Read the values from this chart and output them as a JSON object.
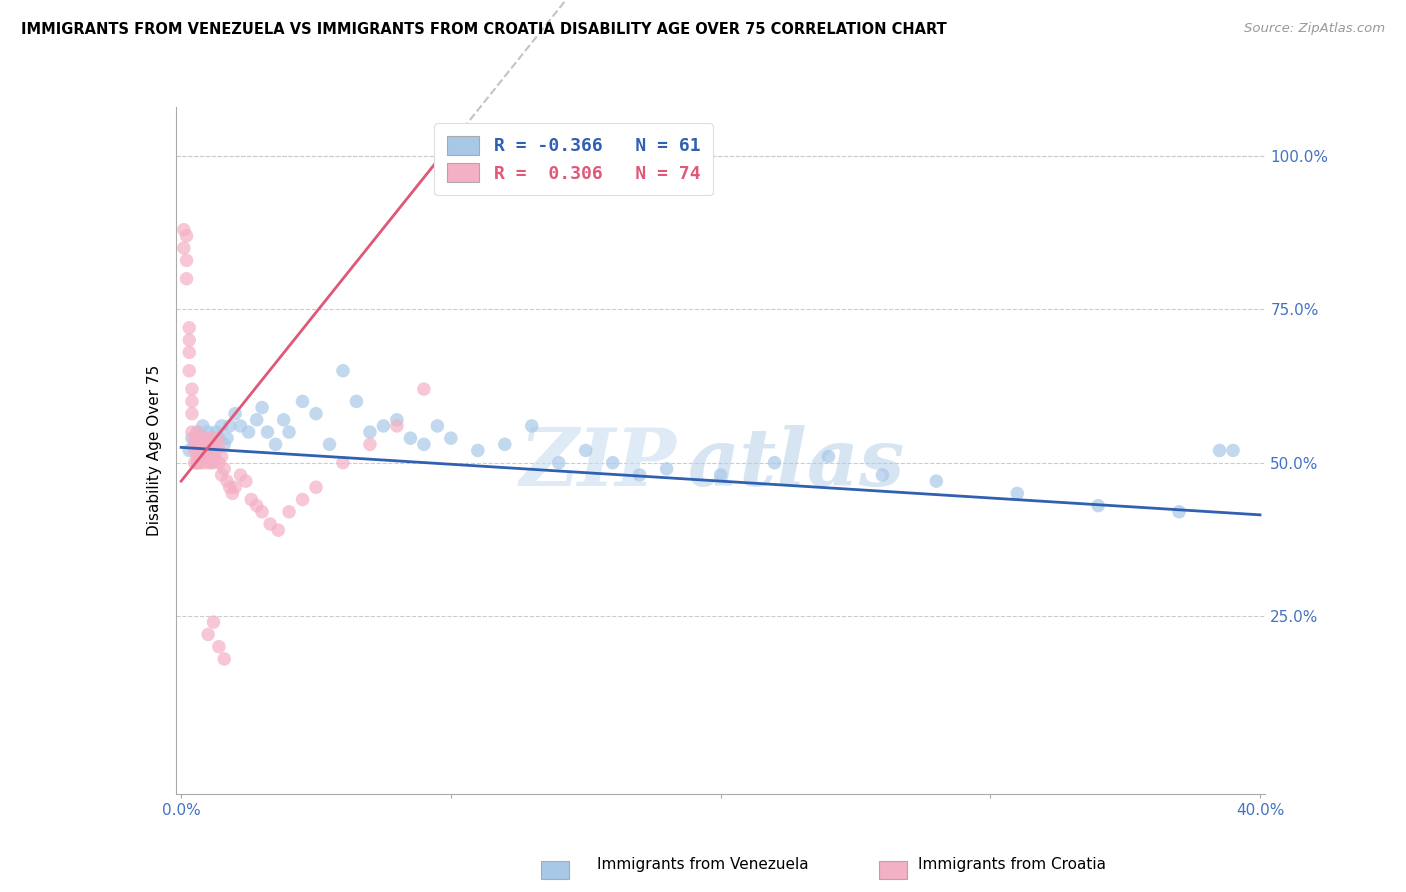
{
  "title": "IMMIGRANTS FROM VENEZUELA VS IMMIGRANTS FROM CROATIA DISABILITY AGE OVER 75 CORRELATION CHART",
  "source_text": "Source: ZipAtlas.com",
  "ylabel": "Disability Age Over 75",
  "xlim": [
    -0.002,
    0.402
  ],
  "ylim": [
    -0.04,
    1.08
  ],
  "xticks": [
    0.0,
    0.1,
    0.2,
    0.3,
    0.4
  ],
  "xtick_labels": [
    "0.0%",
    "",
    "",
    "",
    "40.0%"
  ],
  "yticks": [
    0.25,
    0.5,
    0.75,
    1.0
  ],
  "ytick_labels": [
    "25.0%",
    "50.0%",
    "75.0%",
    "100.0%"
  ],
  "blue_color": "#a8c8e8",
  "pink_color": "#f4b0c4",
  "blue_line_color": "#3060b0",
  "pink_line_color": "#e05878",
  "blue_r": -0.366,
  "blue_n": 61,
  "pink_r": 0.306,
  "pink_n": 74,
  "watermark_zip": "ZIP",
  "watermark_atlas": "atlas",
  "legend_label1": "R = -0.366   N = 61",
  "legend_label2": "R =  0.306   N = 74",
  "blue_trend_x0": 0.0,
  "blue_trend_y0": 0.525,
  "blue_trend_x1": 0.4,
  "blue_trend_y1": 0.415,
  "pink_trend_x0": 0.0,
  "pink_trend_y0": 0.47,
  "pink_trend_slope": 5.5,
  "blue_scatter_x": [
    0.003,
    0.004,
    0.005,
    0.006,
    0.006,
    0.007,
    0.007,
    0.008,
    0.008,
    0.009,
    0.009,
    0.01,
    0.01,
    0.011,
    0.011,
    0.012,
    0.013,
    0.014,
    0.015,
    0.016,
    0.017,
    0.018,
    0.02,
    0.022,
    0.025,
    0.028,
    0.03,
    0.032,
    0.035,
    0.038,
    0.04,
    0.045,
    0.05,
    0.055,
    0.06,
    0.065,
    0.07,
    0.075,
    0.08,
    0.085,
    0.09,
    0.095,
    0.1,
    0.11,
    0.12,
    0.13,
    0.14,
    0.15,
    0.16,
    0.17,
    0.18,
    0.2,
    0.22,
    0.24,
    0.26,
    0.28,
    0.31,
    0.34,
    0.37,
    0.385,
    0.39
  ],
  "blue_scatter_y": [
    0.52,
    0.54,
    0.53,
    0.55,
    0.5,
    0.54,
    0.51,
    0.53,
    0.56,
    0.52,
    0.54,
    0.53,
    0.55,
    0.52,
    0.54,
    0.53,
    0.55,
    0.54,
    0.56,
    0.53,
    0.54,
    0.56,
    0.58,
    0.56,
    0.55,
    0.57,
    0.59,
    0.55,
    0.53,
    0.57,
    0.55,
    0.6,
    0.58,
    0.53,
    0.65,
    0.6,
    0.55,
    0.56,
    0.57,
    0.54,
    0.53,
    0.56,
    0.54,
    0.52,
    0.53,
    0.56,
    0.5,
    0.52,
    0.5,
    0.48,
    0.49,
    0.48,
    0.5,
    0.51,
    0.48,
    0.47,
    0.45,
    0.43,
    0.42,
    0.52,
    0.52
  ],
  "pink_scatter_x": [
    0.001,
    0.001,
    0.002,
    0.002,
    0.002,
    0.003,
    0.003,
    0.003,
    0.003,
    0.004,
    0.004,
    0.004,
    0.004,
    0.005,
    0.005,
    0.005,
    0.005,
    0.006,
    0.006,
    0.006,
    0.006,
    0.006,
    0.007,
    0.007,
    0.007,
    0.007,
    0.007,
    0.008,
    0.008,
    0.008,
    0.008,
    0.009,
    0.009,
    0.009,
    0.009,
    0.01,
    0.01,
    0.01,
    0.01,
    0.011,
    0.011,
    0.011,
    0.012,
    0.012,
    0.012,
    0.013,
    0.013,
    0.014,
    0.014,
    0.015,
    0.015,
    0.016,
    0.017,
    0.018,
    0.019,
    0.02,
    0.022,
    0.024,
    0.026,
    0.028,
    0.03,
    0.033,
    0.036,
    0.04,
    0.045,
    0.05,
    0.06,
    0.07,
    0.08,
    0.09,
    0.01,
    0.012,
    0.014,
    0.016
  ],
  "pink_scatter_y": [
    0.88,
    0.85,
    0.83,
    0.8,
    0.87,
    0.68,
    0.7,
    0.72,
    0.65,
    0.62,
    0.58,
    0.55,
    0.6,
    0.52,
    0.54,
    0.5,
    0.53,
    0.51,
    0.53,
    0.5,
    0.52,
    0.55,
    0.51,
    0.52,
    0.54,
    0.5,
    0.53,
    0.52,
    0.51,
    0.54,
    0.5,
    0.52,
    0.53,
    0.51,
    0.54,
    0.52,
    0.5,
    0.53,
    0.51,
    0.54,
    0.5,
    0.52,
    0.51,
    0.53,
    0.5,
    0.52,
    0.54,
    0.5,
    0.53,
    0.51,
    0.48,
    0.49,
    0.47,
    0.46,
    0.45,
    0.46,
    0.48,
    0.47,
    0.44,
    0.43,
    0.42,
    0.4,
    0.39,
    0.42,
    0.44,
    0.46,
    0.5,
    0.53,
    0.56,
    0.62,
    0.22,
    0.24,
    0.2,
    0.18
  ]
}
